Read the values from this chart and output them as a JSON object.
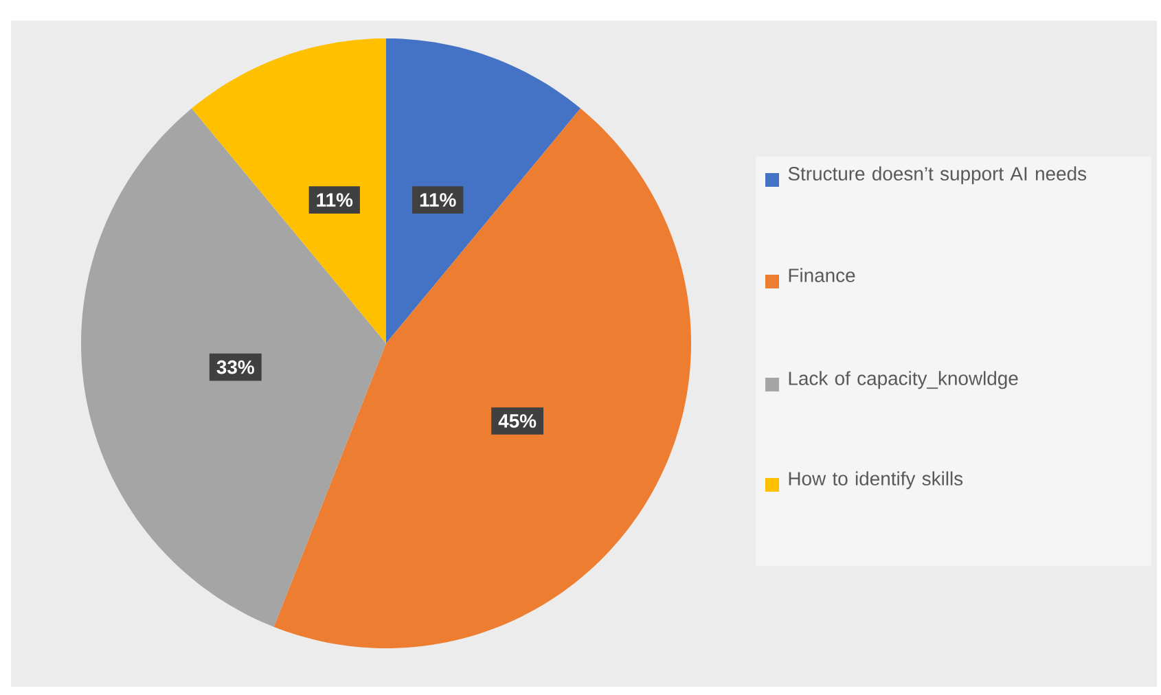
{
  "chart_data": {
    "type": "pie",
    "categories": [
      "Structure doesn’t support AI needs",
      "Finance",
      "Lack of capacity_knowldge",
      "How to identify skills"
    ],
    "values": [
      11,
      45,
      33,
      11
    ],
    "value_labels": [
      "11%",
      "45%",
      "33%",
      "11%"
    ],
    "colors": [
      "#4472c4",
      "#ed7d31",
      "#a5a5a5",
      "#ffc000"
    ],
    "legend": "right"
  }
}
